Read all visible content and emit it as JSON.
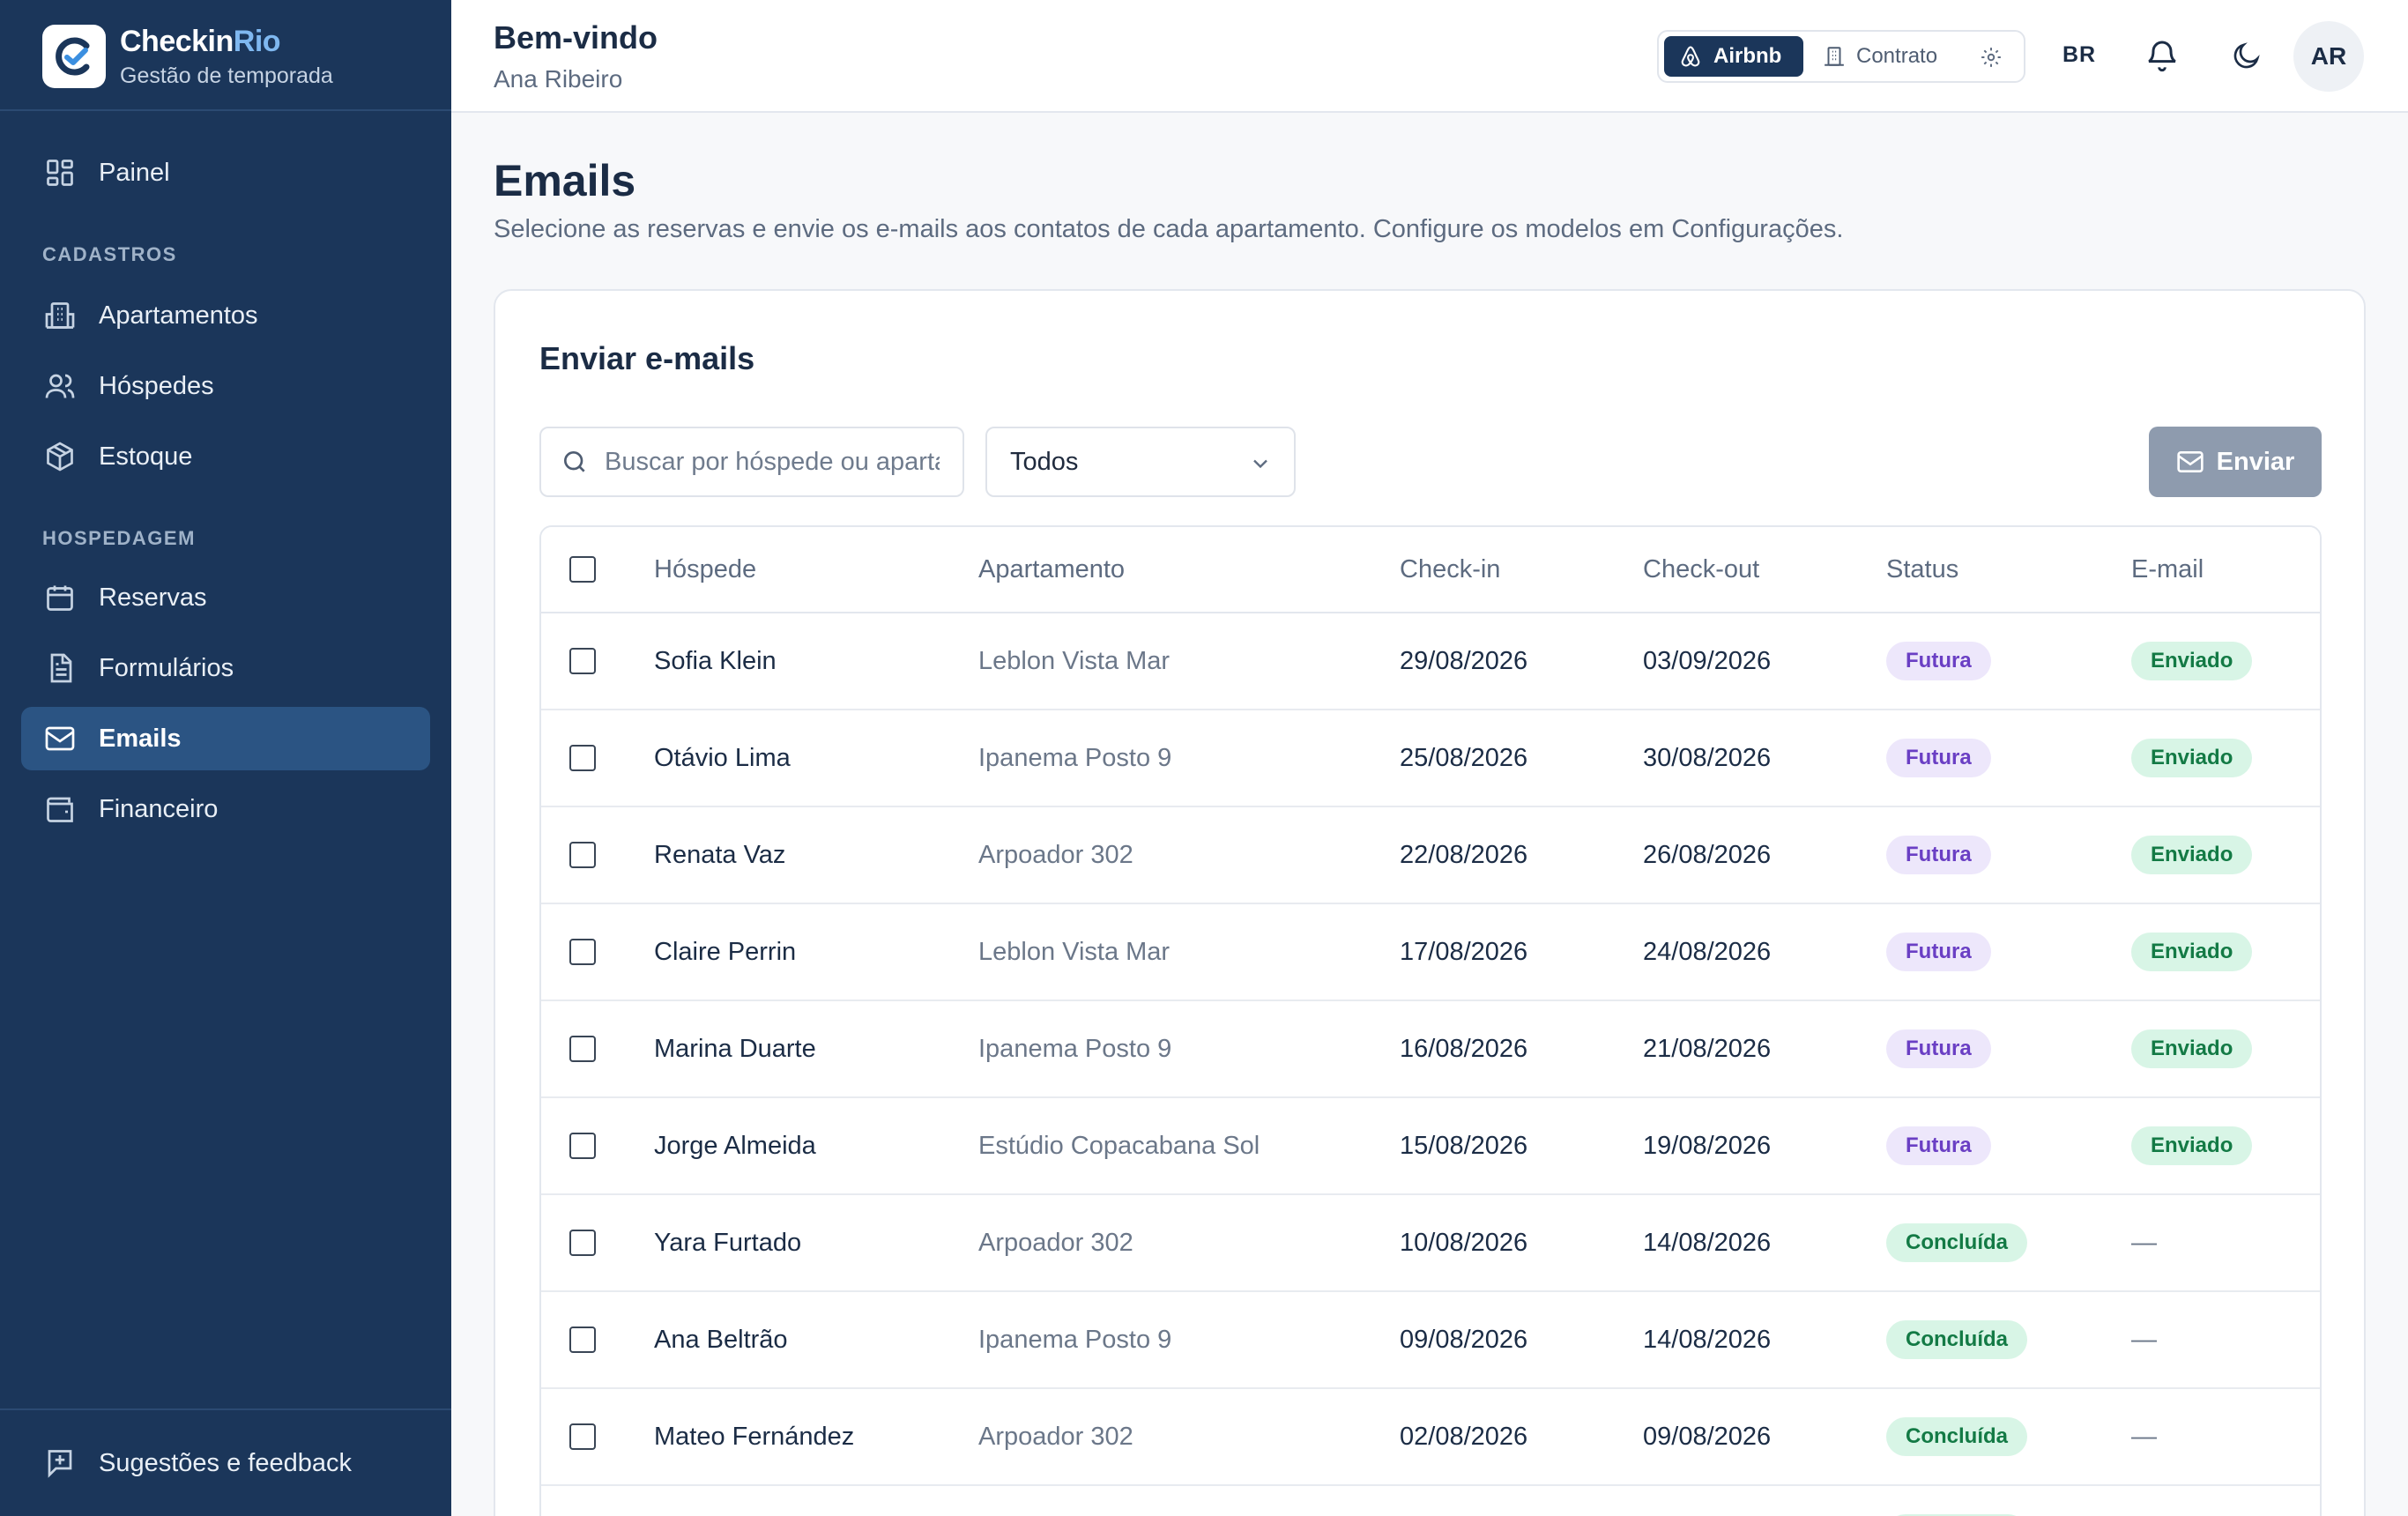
{
  "brand": {
    "name_main": "Checkin",
    "name_accent": "Rio",
    "subtitle": "Gestão de temporada"
  },
  "sidebar": {
    "items": [
      {
        "label": "Painel",
        "icon": "dashboard-icon"
      },
      {
        "label": "Apartamentos",
        "icon": "building-icon"
      },
      {
        "label": "Hóspedes",
        "icon": "users-icon"
      },
      {
        "label": "Estoque",
        "icon": "package-icon"
      },
      {
        "label": "Reservas",
        "icon": "calendar-icon"
      },
      {
        "label": "Formulários",
        "icon": "form-icon"
      },
      {
        "label": "Emails",
        "icon": "mail-icon",
        "active": true
      },
      {
        "label": "Financeiro",
        "icon": "wallet-icon"
      }
    ],
    "sections": [
      "CADASTROS",
      "HOSPEDAGEM"
    ],
    "footer": {
      "label": "Sugestões e feedback",
      "icon": "feedback-icon"
    }
  },
  "header": {
    "welcome": "Bem-vindo",
    "user_name": "Ana Ribeiro",
    "platform": {
      "airbnb": "Airbnb",
      "contrato": "Contrato"
    },
    "language": "BR",
    "avatar_initials": "AR"
  },
  "page": {
    "title": "Emails",
    "description": "Selecione as reservas e envie os e-mails aos contatos de cada apartamento. Configure os modelos em Configurações."
  },
  "card": {
    "title": "Enviar e-mails",
    "search_placeholder": "Buscar por hóspede ou apartamento",
    "filter_value": "Todos",
    "send_label": "Enviar"
  },
  "table": {
    "columns": [
      "Hóspede",
      "Apartamento",
      "Check-in",
      "Check-out",
      "Status",
      "E-mail"
    ],
    "rows": [
      {
        "guest": "Sofia Klein",
        "apartment": "Leblon Vista Mar",
        "checkin": "29/08/2026",
        "checkout": "03/09/2026",
        "status": "Futura",
        "email": "Enviado"
      },
      {
        "guest": "Otávio Lima",
        "apartment": "Ipanema Posto 9",
        "checkin": "25/08/2026",
        "checkout": "30/08/2026",
        "status": "Futura",
        "email": "Enviado"
      },
      {
        "guest": "Renata Vaz",
        "apartment": "Arpoador 302",
        "checkin": "22/08/2026",
        "checkout": "26/08/2026",
        "status": "Futura",
        "email": "Enviado"
      },
      {
        "guest": "Claire Perrin",
        "apartment": "Leblon Vista Mar",
        "checkin": "17/08/2026",
        "checkout": "24/08/2026",
        "status": "Futura",
        "email": "Enviado"
      },
      {
        "guest": "Marina Duarte",
        "apartment": "Ipanema Posto 9",
        "checkin": "16/08/2026",
        "checkout": "21/08/2026",
        "status": "Futura",
        "email": "Enviado"
      },
      {
        "guest": "Jorge Almeida",
        "apartment": "Estúdio Copacabana Sol",
        "checkin": "15/08/2026",
        "checkout": "19/08/2026",
        "status": "Futura",
        "email": "Enviado"
      },
      {
        "guest": "Yara Furtado",
        "apartment": "Arpoador 302",
        "checkin": "10/08/2026",
        "checkout": "14/08/2026",
        "status": "Concluída",
        "email": "—"
      },
      {
        "guest": "Ana Beltrão",
        "apartment": "Ipanema Posto 9",
        "checkin": "09/08/2026",
        "checkout": "14/08/2026",
        "status": "Concluída",
        "email": "—"
      },
      {
        "guest": "Mateo Fernández",
        "apartment": "Arpoador 302",
        "checkin": "02/08/2026",
        "checkout": "09/08/2026",
        "status": "Concluída",
        "email": "—"
      },
      {
        "guest": "",
        "apartment": "",
        "checkin": "",
        "checkout": "",
        "status": "Concluída",
        "email": ""
      }
    ]
  }
}
